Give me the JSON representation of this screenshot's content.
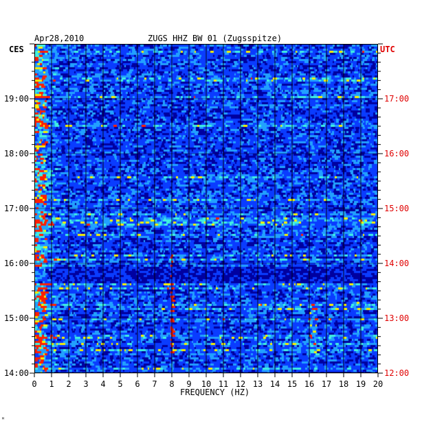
{
  "header": {
    "date": "Apr28,2010",
    "station": "ZUGS HHZ BW 01 (Zugsspitze)",
    "left_zone": "CES",
    "right_zone": "UTC"
  },
  "colors": {
    "background": "#1030d8",
    "utc_labels": "#e00000",
    "grid_lines": "#000000"
  },
  "chart_data": {
    "type": "heatmap",
    "title": "ZUGS HHZ BW 01 (Zugsspitze)",
    "xlabel": "FREQUENCY (HZ)",
    "xlim": [
      0,
      20
    ],
    "x_ticks": [
      "0",
      "1",
      "2",
      "3",
      "4",
      "5",
      "6",
      "7",
      "8",
      "9",
      "10",
      "11",
      "12",
      "13",
      "14",
      "15",
      "16",
      "17",
      "18",
      "19",
      "20"
    ],
    "ylim_hours_ces": [
      14,
      20
    ],
    "left_ticks": [
      {
        "hour": 19,
        "label": "19:00"
      },
      {
        "hour": 18,
        "label": "18:00"
      },
      {
        "hour": 17,
        "label": "17:00"
      },
      {
        "hour": 16,
        "label": "16:00"
      },
      {
        "hour": 15,
        "label": "15:00"
      },
      {
        "hour": 14,
        "label": "14:00"
      }
    ],
    "right_ticks": [
      {
        "hour": 19,
        "label": "17:00"
      },
      {
        "hour": 18,
        "label": "16:00"
      },
      {
        "hour": 17,
        "label": "15:00"
      },
      {
        "hour": 16,
        "label": "14:00"
      },
      {
        "hour": 15,
        "label": "13:00"
      },
      {
        "hour": 14,
        "label": "12:00"
      }
    ],
    "grid": true,
    "colormap": [
      "#0000a0",
      "#0a3cff",
      "#22a0ff",
      "#40f0e0",
      "#f8f000",
      "#ff2000"
    ]
  }
}
